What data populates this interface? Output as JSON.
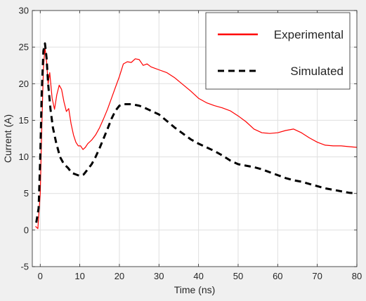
{
  "chart_data": {
    "type": "line",
    "xlabel": "Time (ns)",
    "ylabel": "Current (A)",
    "xlim": [
      -2,
      80
    ],
    "ylim": [
      -5,
      30
    ],
    "xticks": [
      0,
      10,
      20,
      30,
      40,
      50,
      60,
      70,
      80
    ],
    "yticks": [
      -5,
      0,
      5,
      10,
      15,
      20,
      25,
      30
    ],
    "grid": true,
    "legend_position": "top-right",
    "series": [
      {
        "name": "Experimental",
        "color": "#ff0000",
        "style": "solid",
        "x": [
          -1.2,
          -0.6,
          0,
          0.4,
          0.8,
          1.2,
          1.6,
          2.0,
          2.4,
          3.0,
          3.6,
          4.2,
          4.8,
          5.4,
          6.0,
          6.6,
          7.2,
          7.8,
          8.4,
          9.0,
          9.6,
          10.2,
          10.8,
          11.4,
          12.0,
          13,
          14,
          15,
          16,
          17,
          18,
          19,
          20,
          21,
          22,
          23,
          24,
          25,
          26,
          27,
          28,
          29,
          30,
          32,
          34,
          36,
          38,
          40,
          42,
          44,
          46,
          48,
          50,
          52,
          54,
          56,
          58,
          60,
          62,
          64,
          66,
          68,
          70,
          72,
          74,
          76,
          78,
          80
        ],
        "y": [
          0.5,
          0.2,
          5,
          14,
          22,
          25,
          23,
          20,
          21.5,
          18,
          16.5,
          18.5,
          19.8,
          19.2,
          17.5,
          16.2,
          16.6,
          14.5,
          13,
          12,
          11.5,
          11.5,
          11.0,
          11.3,
          11.8,
          12.3,
          13.0,
          14.0,
          15.2,
          16.5,
          18.0,
          19.5,
          21.0,
          22.7,
          23.0,
          22.9,
          23.4,
          23.3,
          22.5,
          22.7,
          22.3,
          22.1,
          21.9,
          21.5,
          20.8,
          19.9,
          19.0,
          18.0,
          17.4,
          17.0,
          16.7,
          16.3,
          15.6,
          14.8,
          13.8,
          13.3,
          13.2,
          13.3,
          13.6,
          13.8,
          13.3,
          12.6,
          12.0,
          11.6,
          11.5,
          11.5,
          11.4,
          11.3
        ]
      },
      {
        "name": "Simulated",
        "color": "#000000",
        "style": "dashed",
        "x": [
          -1.0,
          -0.4,
          0,
          0.4,
          0.8,
          1.2,
          1.6,
          2.0,
          2.6,
          3.2,
          4,
          5,
          6,
          7,
          8,
          9,
          10,
          11,
          12,
          13,
          14,
          15,
          16,
          17,
          18,
          19,
          20,
          21,
          22,
          23,
          24,
          25,
          26,
          28,
          30,
          32,
          34,
          36,
          38,
          40,
          42,
          44,
          46,
          48,
          50,
          52,
          54,
          56,
          58,
          60,
          62,
          64,
          66,
          68,
          70,
          72,
          74,
          76,
          78,
          80
        ],
        "y": [
          1.0,
          3,
          10,
          19,
          24.5,
          25.5,
          23.5,
          20,
          16.5,
          14,
          12,
          10,
          9,
          8.5,
          7.8,
          7.6,
          7.4,
          7.6,
          8.3,
          9.0,
          10.0,
          11.2,
          12.5,
          13.8,
          15.2,
          16.3,
          17.0,
          17.2,
          17.2,
          17.2,
          17.1,
          17.0,
          16.8,
          16.3,
          15.8,
          14.9,
          14.0,
          13.2,
          12.4,
          11.8,
          11.3,
          10.8,
          10.2,
          9.5,
          9.0,
          8.8,
          8.6,
          8.3,
          7.9,
          7.5,
          7.1,
          6.8,
          6.6,
          6.3,
          6.0,
          5.7,
          5.5,
          5.3,
          5.1,
          5.0
        ]
      }
    ]
  }
}
